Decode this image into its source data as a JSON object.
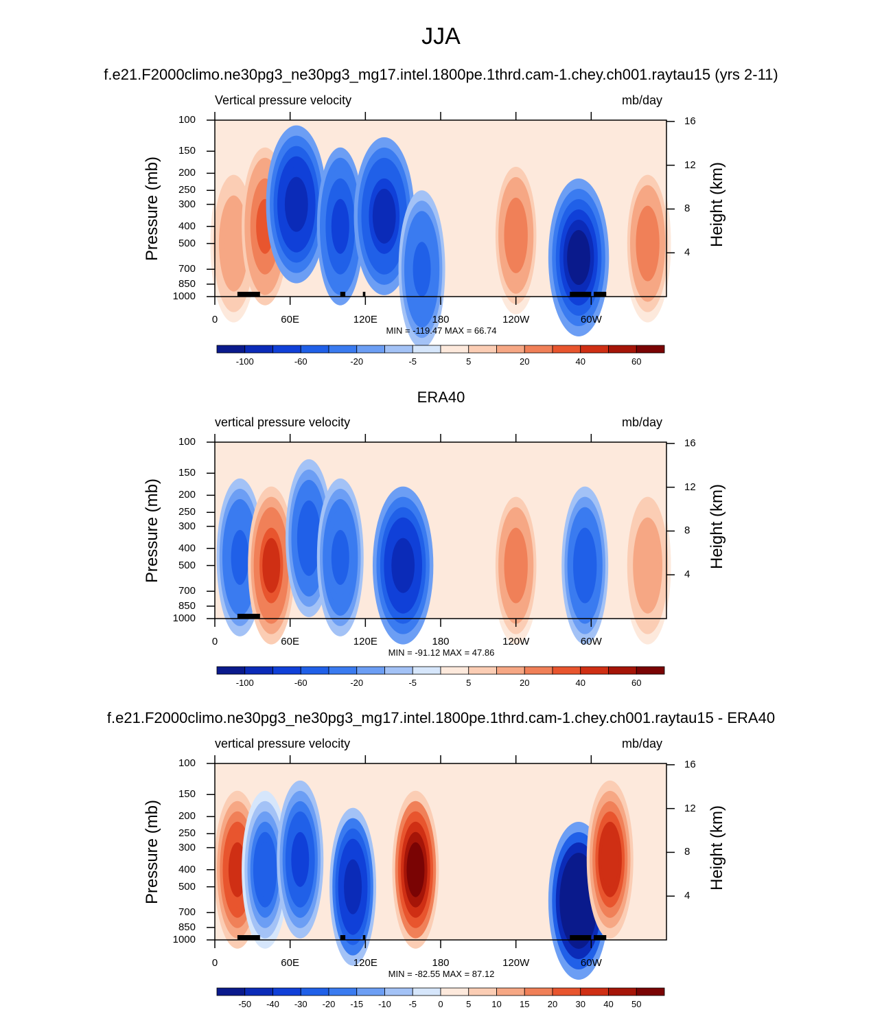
{
  "main_title": "JJA",
  "colors": {
    "abs_palette": [
      "#0a1a8c",
      "#0b2bb8",
      "#1040d8",
      "#2060e8",
      "#3a7bf0",
      "#6c9ef4",
      "#a3c2f6",
      "#d6e6fb",
      "#fde9dc",
      "#fbcdb4",
      "#f6a784",
      "#f08058",
      "#e8552e",
      "#cf2f14",
      "#a51508",
      "#7a0404"
    ],
    "diff_palette": [
      "#0a1a8c",
      "#0b2bb8",
      "#1040d8",
      "#2060e8",
      "#3a7bf0",
      "#6c9ef4",
      "#a3c2f6",
      "#d6e6fb",
      "#fde9dc",
      "#fbcdb4",
      "#f6a784",
      "#f08058",
      "#e8552e",
      "#cf2f14",
      "#a51508",
      "#7a0404"
    ]
  },
  "chart_data": [
    {
      "type": "heatmap",
      "panel_title": "f.e21.F2000climo.ne30pg3_ne30pg3_mg17.intel.1800pe.1thrd.cam-1.chey.ch001.raytau15 (yrs 2-11)",
      "left_label": "Vertical pressure velocity",
      "units": "mb/day",
      "ylabel": "Pressure (mb)",
      "ylabel_right": "Height (km)",
      "y_ticks": [
        "100",
        "150",
        "200",
        "250",
        "300",
        "400",
        "500",
        "700",
        "850",
        "1000"
      ],
      "y_ticks_right": [
        "16",
        "12",
        "8",
        "4"
      ],
      "x_ticks": [
        "0",
        "60E",
        "120E",
        "180",
        "120W",
        "60W"
      ],
      "minmax": "MIN = -119.47  MAX =  66.74",
      "colorbar_labels": [
        "-100",
        "-60",
        "-20",
        "-5",
        "5",
        "20",
        "40",
        "60"
      ],
      "ylim": [
        1000,
        100
      ],
      "xlim": [
        0,
        360
      ],
      "features": [
        {
          "lon": 15,
          "p": 500,
          "value": 20
        },
        {
          "lon": 40,
          "p": 400,
          "value": 35
        },
        {
          "lon": 65,
          "p": 300,
          "value": -95
        },
        {
          "lon": 100,
          "p": 400,
          "value": -60
        },
        {
          "lon": 135,
          "p": 350,
          "value": -80
        },
        {
          "lon": 165,
          "p": 700,
          "value": -40
        },
        {
          "lon": 240,
          "p": 450,
          "value": 30
        },
        {
          "lon": 290,
          "p": 600,
          "value": -119
        },
        {
          "lon": 345,
          "p": 500,
          "value": 25
        }
      ]
    },
    {
      "type": "heatmap",
      "panel_title": "ERA40",
      "left_label": "vertical pressure velocity",
      "units": "mb/day",
      "ylabel": "Pressure (mb)",
      "ylabel_right": "Height (km)",
      "y_ticks": [
        "100",
        "150",
        "200",
        "250",
        "300",
        "400",
        "500",
        "700",
        "850",
        "1000"
      ],
      "y_ticks_right": [
        "16",
        "12",
        "8",
        "4"
      ],
      "x_ticks": [
        "0",
        "60E",
        "120E",
        "180",
        "120W",
        "60W"
      ],
      "minmax": "MIN = -91.12  MAX =  47.86",
      "colorbar_labels": [
        "-100",
        "-60",
        "-20",
        "-5",
        "5",
        "20",
        "40",
        "60"
      ],
      "ylim": [
        1000,
        100
      ],
      "xlim": [
        0,
        360
      ],
      "features": [
        {
          "lon": 20,
          "p": 450,
          "value": -45
        },
        {
          "lon": 45,
          "p": 500,
          "value": 45
        },
        {
          "lon": 75,
          "p": 350,
          "value": -55
        },
        {
          "lon": 100,
          "p": 450,
          "value": -45
        },
        {
          "lon": 150,
          "p": 500,
          "value": -91
        },
        {
          "lon": 240,
          "p": 500,
          "value": 30
        },
        {
          "lon": 295,
          "p": 500,
          "value": -55
        },
        {
          "lon": 345,
          "p": 500,
          "value": 20
        }
      ]
    },
    {
      "type": "heatmap",
      "panel_title": "f.e21.F2000climo.ne30pg3_ne30pg3_mg17.intel.1800pe.1thrd.cam-1.chey.ch001.raytau15 - ERA40",
      "left_label": "vertical pressure velocity",
      "units": "mb/day",
      "ylabel": "Pressure (mb)",
      "ylabel_right": "Height (km)",
      "y_ticks": [
        "100",
        "150",
        "200",
        "250",
        "300",
        "400",
        "500",
        "700",
        "850",
        "1000"
      ],
      "y_ticks_right": [
        "16",
        "12",
        "8",
        "4"
      ],
      "x_ticks": [
        "0",
        "60E",
        "120E",
        "180",
        "120W",
        "60W"
      ],
      "minmax": "MIN = -82.55  MAX =  87.12",
      "colorbar_labels": [
        "-50",
        "-40",
        "-30",
        "-20",
        "-15",
        "-10",
        "-5",
        "0",
        "5",
        "10",
        "15",
        "20",
        "30",
        "40",
        "50"
      ],
      "ylim": [
        1000,
        100
      ],
      "xlim": [
        0,
        360
      ],
      "features": [
        {
          "lon": 18,
          "p": 400,
          "value": 35
        },
        {
          "lon": 40,
          "p": 400,
          "value": -25
        },
        {
          "lon": 68,
          "p": 350,
          "value": -35
        },
        {
          "lon": 110,
          "p": 500,
          "value": -45
        },
        {
          "lon": 160,
          "p": 400,
          "value": 60
        },
        {
          "lon": 290,
          "p": 600,
          "value": -82
        },
        {
          "lon": 315,
          "p": 350,
          "value": 40
        }
      ]
    }
  ]
}
